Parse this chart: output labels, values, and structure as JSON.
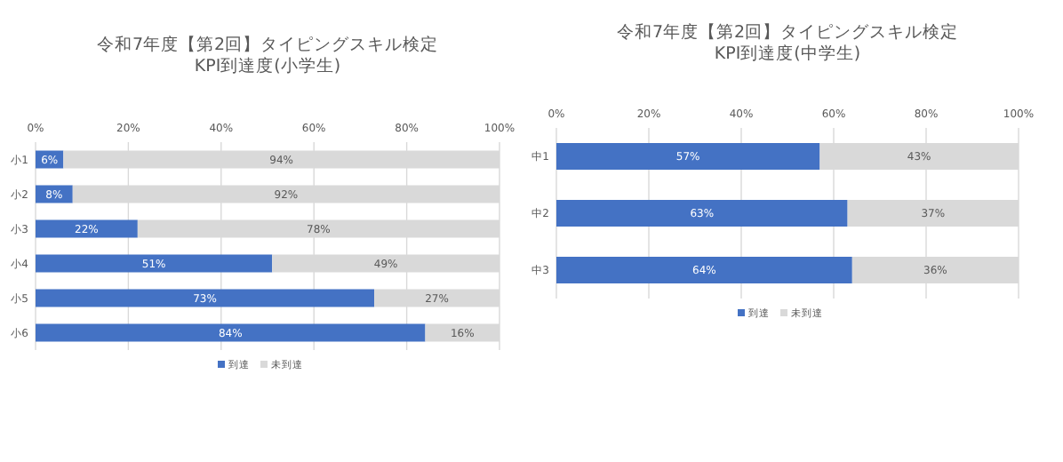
{
  "chart_data": [
    {
      "type": "bar",
      "orientation": "horizontal",
      "stacked": true,
      "title": "令和7年度【第2回】タイピングスキル検定",
      "subtitle": "KPI到達度(小学生)",
      "categories": [
        "小1",
        "小2",
        "小3",
        "小4",
        "小5",
        "小6"
      ],
      "series": [
        {
          "name": "到達",
          "color": "#4472c4",
          "values": [
            6,
            8,
            22,
            51,
            73,
            84
          ],
          "value_labels": [
            "6%",
            "8%",
            "22%",
            "51%",
            "73%",
            "84%"
          ]
        },
        {
          "name": "未到達",
          "color": "#d9d9d9",
          "values": [
            94,
            92,
            78,
            49,
            27,
            16
          ],
          "value_labels": [
            "94%",
            "92%",
            "78%",
            "49%",
            "27%",
            "16%"
          ]
        }
      ],
      "xlim": [
        0,
        100
      ],
      "xticks": [
        {
          "value": 0,
          "label": "0%"
        },
        {
          "value": 20,
          "label": "20%"
        },
        {
          "value": 40,
          "label": "40%"
        },
        {
          "value": 60,
          "label": "60%"
        },
        {
          "value": 80,
          "label": "80%"
        },
        {
          "value": 100,
          "label": "100%"
        }
      ],
      "grid": "x",
      "legend": "bottom"
    },
    {
      "type": "bar",
      "orientation": "horizontal",
      "stacked": true,
      "title": "令和7年度【第2回】タイピングスキル検定",
      "subtitle": "KPI到達度(中学生)",
      "categories": [
        "中1",
        "中2",
        "中3"
      ],
      "series": [
        {
          "name": "到達",
          "color": "#4472c4",
          "values": [
            57,
            63,
            64
          ],
          "value_labels": [
            "57%",
            "63%",
            "64%"
          ]
        },
        {
          "name": "未到達",
          "color": "#d9d9d9",
          "values": [
            43,
            37,
            36
          ],
          "value_labels": [
            "43%",
            "37%",
            "36%"
          ]
        }
      ],
      "xlim": [
        0,
        100
      ],
      "xticks": [
        {
          "value": 0,
          "label": "0%"
        },
        {
          "value": 20,
          "label": "20%"
        },
        {
          "value": 40,
          "label": "40%"
        },
        {
          "value": 60,
          "label": "60%"
        },
        {
          "value": 80,
          "label": "80%"
        },
        {
          "value": 100,
          "label": "100%"
        }
      ],
      "grid": "x",
      "legend": "bottom"
    }
  ]
}
